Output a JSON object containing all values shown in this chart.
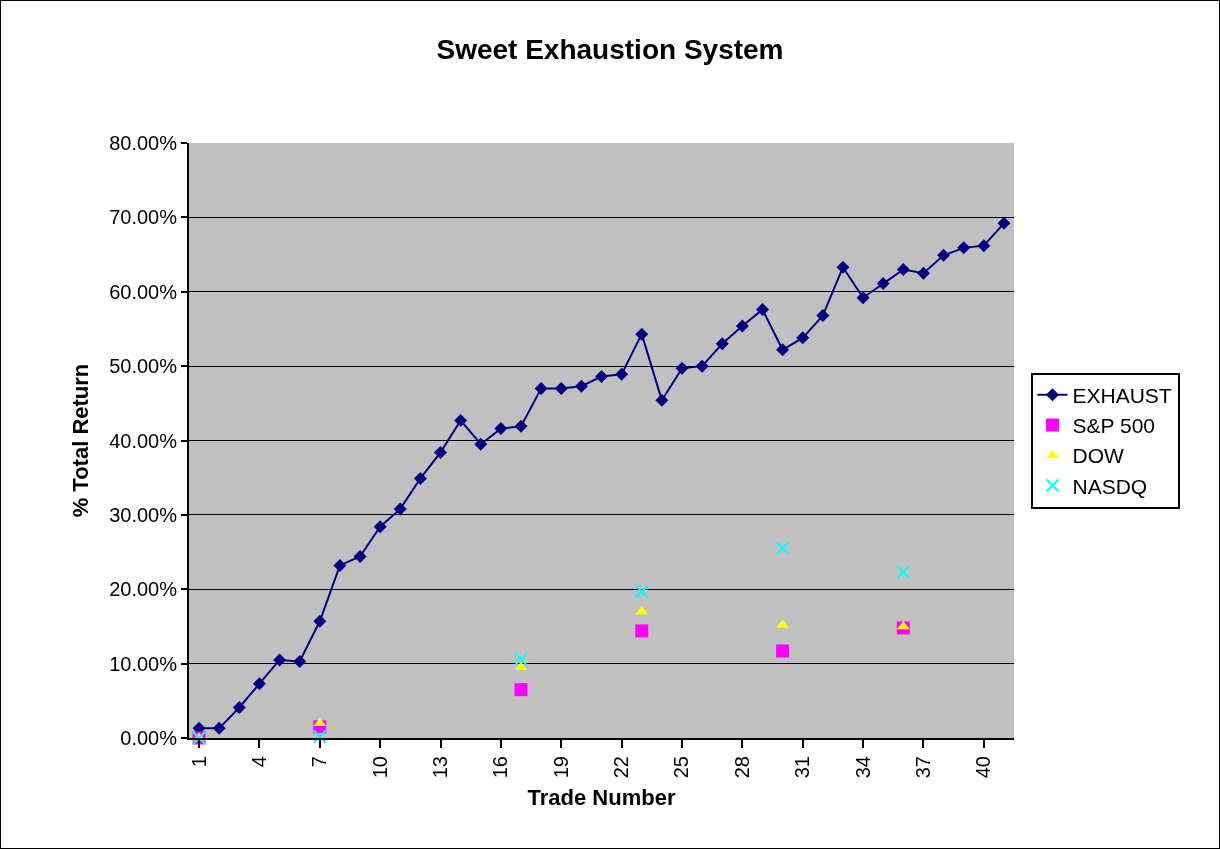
{
  "chart_data": {
    "type": "line",
    "title": "Sweet Exhaustion System",
    "xlabel": "Trade Number",
    "ylabel": "% Total Return",
    "categories": [
      "1",
      null,
      null,
      "4",
      null,
      null,
      "7",
      null,
      null,
      "10",
      null,
      null,
      "13",
      null,
      null,
      "16",
      null,
      null,
      "19",
      null,
      null,
      "22",
      null,
      null,
      "25",
      null,
      null,
      "28",
      null,
      null,
      "31",
      null,
      null,
      "34",
      null,
      null,
      "37",
      null,
      null,
      "40",
      null
    ],
    "series": [
      {
        "name": "EXHAUST",
        "color": "#000080",
        "marker": "diamond",
        "values": [
          1.3,
          1.3,
          4.1,
          7.3,
          10.5,
          10.3,
          15.7,
          23.2,
          24.4,
          28.4,
          30.8,
          34.9,
          38.4,
          42.7,
          39.5,
          41.6,
          41.9,
          47.0,
          47.0,
          47.3,
          48.6,
          48.9,
          54.3,
          45.4,
          49.7,
          50.0,
          53.0,
          55.4,
          57.6,
          52.2,
          53.8,
          56.8,
          63.3,
          59.2,
          61.1,
          63.0,
          62.5,
          64.9,
          65.9,
          66.2,
          69.2
        ]
      },
      {
        "name": "S&P 500",
        "type": "scatter",
        "color": "#ff00ff",
        "marker": "square",
        "values": [
          0,
          null,
          null,
          null,
          null,
          null,
          1.5,
          null,
          null,
          null,
          null,
          null,
          null,
          null,
          null,
          null,
          6.5,
          null,
          null,
          null,
          null,
          null,
          14.4,
          null,
          null,
          null,
          null,
          null,
          null,
          11.7,
          null,
          null,
          null,
          null,
          null,
          14.8,
          null,
          null,
          null,
          null,
          null
        ]
      },
      {
        "name": "DOW",
        "type": "scatter",
        "color": "#ffff00",
        "marker": "triangle",
        "values": [
          0,
          null,
          null,
          null,
          null,
          null,
          2.0,
          null,
          null,
          null,
          null,
          null,
          null,
          null,
          null,
          null,
          9.5,
          null,
          null,
          null,
          null,
          null,
          17.0,
          null,
          null,
          null,
          null,
          null,
          null,
          15.2,
          null,
          null,
          null,
          null,
          null,
          15.0,
          null,
          null,
          null,
          null,
          null
        ]
      },
      {
        "name": "NASDQ",
        "type": "scatter",
        "color": "#00ffff",
        "marker": "cross",
        "values": [
          0,
          null,
          null,
          null,
          null,
          null,
          0.2,
          null,
          null,
          null,
          null,
          null,
          null,
          null,
          null,
          null,
          10.6,
          null,
          null,
          null,
          null,
          null,
          19.7,
          null,
          null,
          null,
          null,
          null,
          null,
          25.5,
          null,
          null,
          null,
          null,
          null,
          22.3,
          null,
          null,
          null,
          null,
          null
        ]
      }
    ],
    "ylim": [
      0,
      80
    ],
    "yticks": [
      {
        "value": 0,
        "label": "0.00%"
      },
      {
        "value": 10,
        "label": "10.00%"
      },
      {
        "value": 20,
        "label": "20.00%"
      },
      {
        "value": 30,
        "label": "30.00%"
      },
      {
        "value": 40,
        "label": "40.00%"
      },
      {
        "value": 50,
        "label": "50.00%"
      },
      {
        "value": 60,
        "label": "60.00%"
      },
      {
        "value": 70,
        "label": "70.00%"
      },
      {
        "value": 80,
        "label": "80.00%"
      }
    ],
    "grid": "y",
    "legend": "right",
    "line_style": "solid"
  }
}
